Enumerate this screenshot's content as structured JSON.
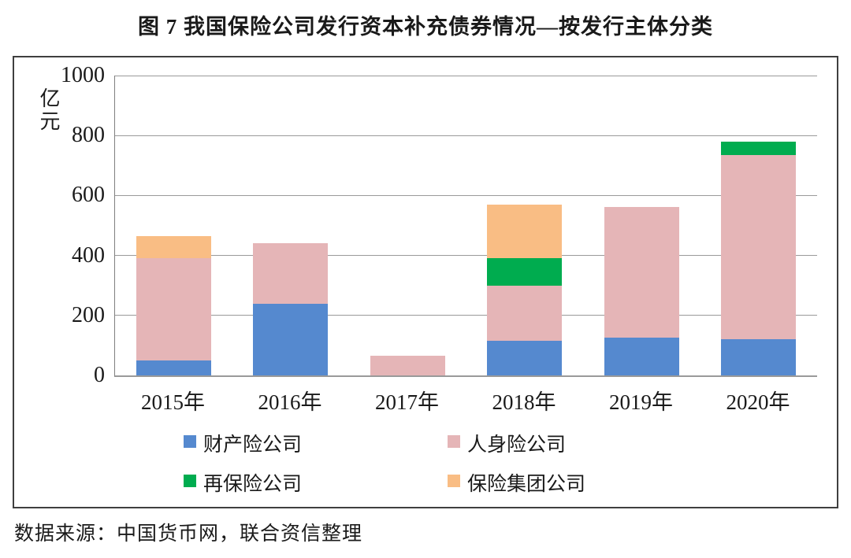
{
  "title": "图 7 我国保险公司发行资本补充债券情况—按发行主体分类",
  "source": "数据来源：中国货币网，联合资信整理",
  "chart_data": {
    "type": "bar",
    "stacked": true,
    "title": "图 7 我国保险公司发行资本补充债券情况—按发行主体分类",
    "unit_label": "亿元",
    "categories": [
      "2015年",
      "2016年",
      "2017年",
      "2018年",
      "2019年",
      "2020年"
    ],
    "series": [
      {
        "name": "财产险公司",
        "key": "property-insurance",
        "color": "#5589cf",
        "values": [
          50,
          240,
          0,
          115,
          127,
          120
        ]
      },
      {
        "name": "人身险公司",
        "key": "life-insurance",
        "color": "#e5b5b7",
        "values": [
          340,
          200,
          65,
          185,
          436,
          615
        ]
      },
      {
        "name": "再保险公司",
        "key": "reinsurance",
        "color": "#00ac4f",
        "values": [
          0,
          0,
          0,
          90,
          0,
          45
        ]
      },
      {
        "name": "保险集团公司",
        "key": "insurance-group",
        "color": "#f9bd84",
        "values": [
          75,
          0,
          0,
          180,
          0,
          0
        ]
      }
    ],
    "totals": [
      465,
      440,
      65,
      570,
      563,
      780
    ],
    "ylim": [
      0,
      1000
    ],
    "yticks": [
      0,
      200,
      400,
      600,
      800,
      1000
    ],
    "grid": true,
    "legend_position": "bottom",
    "colors": {
      "gridline": "#9a9a9a",
      "axis": "#7f7f7f",
      "box_border": "#3f3f3f",
      "text": "#1a1a1a"
    }
  }
}
